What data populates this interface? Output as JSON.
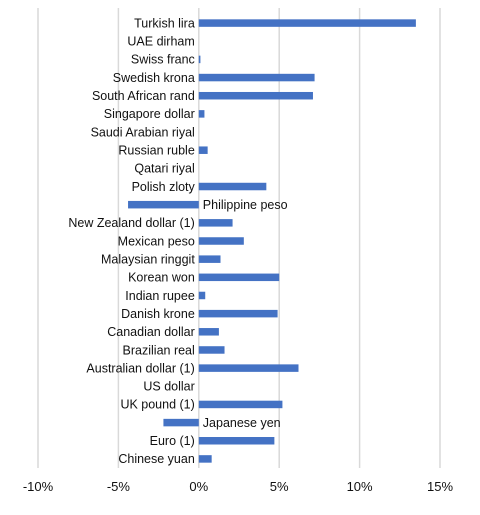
{
  "chart_data": {
    "type": "bar",
    "orientation": "horizontal",
    "title": "",
    "xlabel": "",
    "ylabel": "",
    "xlim": [
      -0.1,
      0.15
    ],
    "xticks": [
      {
        "value": -0.1,
        "label": "-10%"
      },
      {
        "value": -0.05,
        "label": "-5%"
      },
      {
        "value": 0.0,
        "label": "0%"
      },
      {
        "value": 0.05,
        "label": "5%"
      },
      {
        "value": 0.1,
        "label": "10%"
      },
      {
        "value": 0.15,
        "label": "15%"
      }
    ],
    "grid": true,
    "legend": "none",
    "bar_color": "#4472C4",
    "grid_color": "#D9D9D9",
    "categories": [
      "Turkish lira",
      "UAE dirham",
      "Swiss franc",
      "Swedish krona",
      "South African rand",
      "Singapore dollar",
      "Saudi Arabian riyal",
      "Russian ruble",
      "Qatari riyal",
      "Polish zloty",
      "Philippine peso",
      "New Zealand dollar (1)",
      "Mexican peso",
      "Malaysian ringgit",
      "Korean won",
      "Indian rupee",
      "Danish krone",
      "Canadian dollar",
      "Brazilian real",
      "Australian dollar (1)",
      "US dollar",
      "UK pound (1)",
      "Japanese yen",
      "Euro (1)",
      "Chinese yuan"
    ],
    "values": [
      0.135,
      0.0,
      0.001,
      0.072,
      0.071,
      0.0035,
      0.0,
      0.0055,
      0.0,
      0.042,
      -0.044,
      0.021,
      0.028,
      0.0135,
      0.05,
      0.004,
      0.049,
      0.0125,
      0.016,
      0.062,
      0.0,
      0.052,
      -0.022,
      0.047,
      0.008
    ]
  }
}
